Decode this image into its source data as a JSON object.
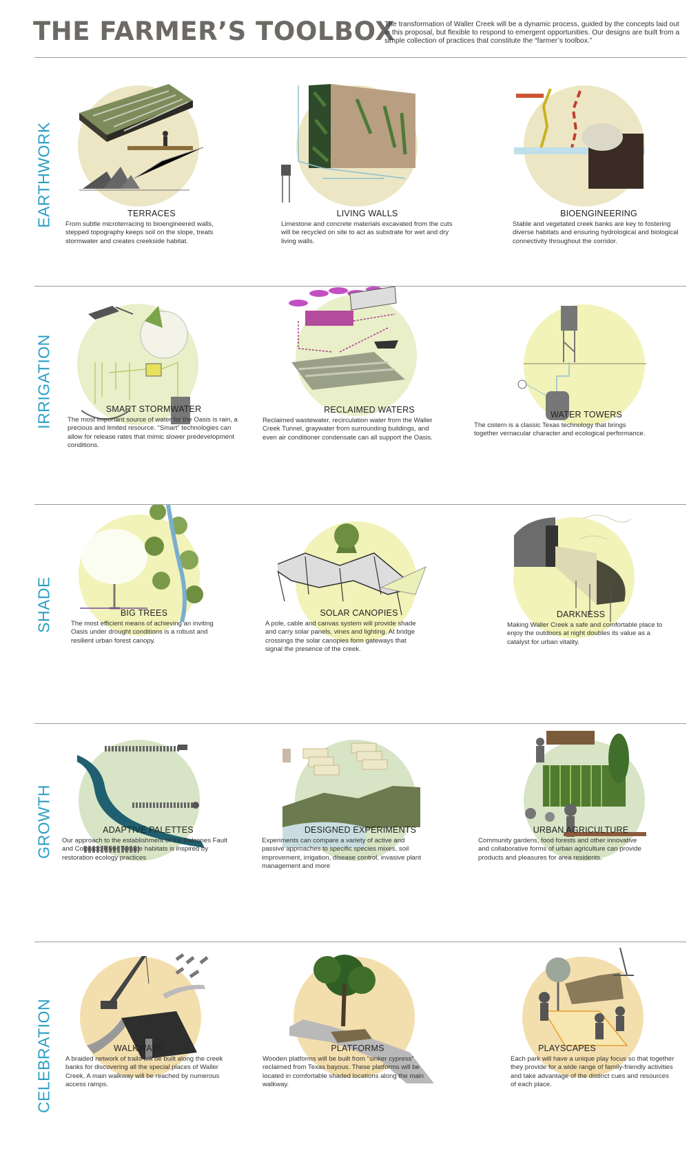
{
  "header": {
    "title": "THE FARMER’S TOOLBOX",
    "intro": "The transformation of Waller Creek will be a dynamic process, guided by the concepts laid out in this proposal, but flexible to respond to emergent opportunities. Our designs are built from a simple collection of practices that constitute the “farmer’s toolbox.”"
  },
  "colors": {
    "heading_blue": "#2a9ec4",
    "title_gray": "#6d6a66",
    "earthwork_circle": "#ece6c4",
    "irrigation_circle": "#e9efc9",
    "shade_circle": "#f1f3b8",
    "growth_circle": "#d7e4c5",
    "celebration_circle": "#f3dfae"
  },
  "sections": [
    {
      "label": "EARTHWORK",
      "items": [
        {
          "title": "TERRACES",
          "icon": "terraces-illustration",
          "desc": "From subtle microterracing to bioengineered walls, stepped topography keeps soil on the slope, treats stormwater and creates creekside habitat."
        },
        {
          "title": "LIVING WALLS",
          "icon": "living-wall-illustration",
          "desc": "Limestone and concrete materials excavated from the cuts will be recycled on site to act as substrate for wet and dry living walls."
        },
        {
          "title": "BIOENGINEERING",
          "icon": "creek-bank-illustration",
          "desc": "Stable and vegetated creek banks are key to fostering diverse habitats and ensuring hydrological and biological connectivity throughout the corridor."
        }
      ]
    },
    {
      "label": "IRRIGATION",
      "items": [
        {
          "title": "SMART STORMWATER",
          "icon": "stormwater-system-illustration",
          "desc": "The most important source of water for the Oasis is rain, a precious and limited resource. “Smart” technologies can allow for release rates that mimic slower predevelopment conditions."
        },
        {
          "title": "RECLAIMED WATERS",
          "icon": "reclaimed-water-illustration",
          "desc": "Reclaimed wastewater, recirculation water from the Waller Creek Tunnel, graywater from surrounding buildings, and even air conditioner condensate can all support the Oasis."
        },
        {
          "title": "WATER TOWERS",
          "icon": "water-tower-illustration",
          "desc": "The cistern is a classic Texas technology that brings together vernacular character and ecological performance."
        }
      ]
    },
    {
      "label": "SHADE",
      "items": [
        {
          "title": "BIG TREES",
          "icon": "tree-canopy-illustration",
          "desc": "The most efficient means of achieving an inviting Oasis under drought conditions is a robust and resilient urban forest canopy."
        },
        {
          "title": "SOLAR CANOPIES",
          "icon": "solar-canopy-illustration",
          "desc": "A pole, cable and canvas system will provide shade and carry solar panels, vines and lighting. At bridge crossings the solar canopies form gateways that signal the presence of the creek."
        },
        {
          "title": "DARKNESS",
          "icon": "night-lighting-illustration",
          "desc": "Making Waller Creek a safe and comfortable place to enjoy the outdoors at night doubles its value as a catalyst for urban vitality."
        }
      ]
    },
    {
      "label": "GROWTH",
      "items": [
        {
          "title": "ADAPTIVE PALETTES",
          "icon": "plant-palette-illustration",
          "desc": "Our approach to the establishment of the Balcones Fault and Colorado River Terrace habitats is inspired by restoration ecology practices"
        },
        {
          "title": "DESIGNED EXPERIMENTS",
          "icon": "experiment-plots-illustration",
          "desc": "Experiments can compare a variety of active and passive approaches to specific species mixes, soil improvement, irrigation, disease control, invasive plant management and more"
        },
        {
          "title": "URBAN AGRICULTURE",
          "icon": "urban-farm-illustration",
          "desc": "Community gardens, food forests and other innovative and collaborative forms of urban agriculture can provide products and pleasures for area residents."
        }
      ]
    },
    {
      "label": "CELEBRATION",
      "items": [
        {
          "title": "WALKWAYS",
          "icon": "walkway-crane-illustration",
          "desc": "A braided network of trails will be built along the creek banks for discovering all the special places of Waller Creek. A main walkway will be reached by numerous access ramps."
        },
        {
          "title": "PLATFORMS",
          "icon": "platform-tree-illustration",
          "desc": "Wooden platforms will be built from “sinker cypress” reclaimed from Texas bayous. These platforms will be located in comfortable shaded locations along the main walkway."
        },
        {
          "title": "PLAYSCAPES",
          "icon": "playscape-illustration",
          "desc": "Each park will have a unique play focus so that together they provide for a wide range of family-friendly activities and take advantage of the distinct cues and resources of each place."
        }
      ]
    }
  ]
}
